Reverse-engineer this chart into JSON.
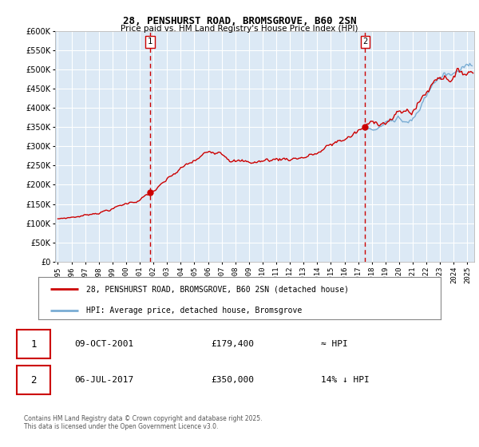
{
  "title_line1": "28, PENSHURST ROAD, BROMSGROVE, B60 2SN",
  "title_line2": "Price paid vs. HM Land Registry's House Price Index (HPI)",
  "bg_color": "#dce9f5",
  "fig_bg_color": "#ffffff",
  "red_line_color": "#cc0000",
  "blue_line_color": "#7aadd4",
  "dashed_line_color": "#cc0000",
  "grid_color": "#ffffff",
  "ylim_min": 0,
  "ylim_max": 600000,
  "yticks": [
    0,
    50000,
    100000,
    150000,
    200000,
    250000,
    300000,
    350000,
    400000,
    450000,
    500000,
    550000,
    600000
  ],
  "purchase1_date": 2001.77,
  "purchase1_price": 179400,
  "purchase2_date": 2017.51,
  "purchase2_price": 350000,
  "legend_text1": "28, PENSHURST ROAD, BROMSGROVE, B60 2SN (detached house)",
  "legend_text2": "HPI: Average price, detached house, Bromsgrove",
  "annot1_date": "09-OCT-2001",
  "annot1_price": "£179,400",
  "annot1_hpi": "≈ HPI",
  "annot2_date": "06-JUL-2017",
  "annot2_price": "£350,000",
  "annot2_hpi": "14% ↓ HPI",
  "footer": "Contains HM Land Registry data © Crown copyright and database right 2025.\nThis data is licensed under the Open Government Licence v3.0.",
  "xmin": 1994.8,
  "xmax": 2025.5
}
